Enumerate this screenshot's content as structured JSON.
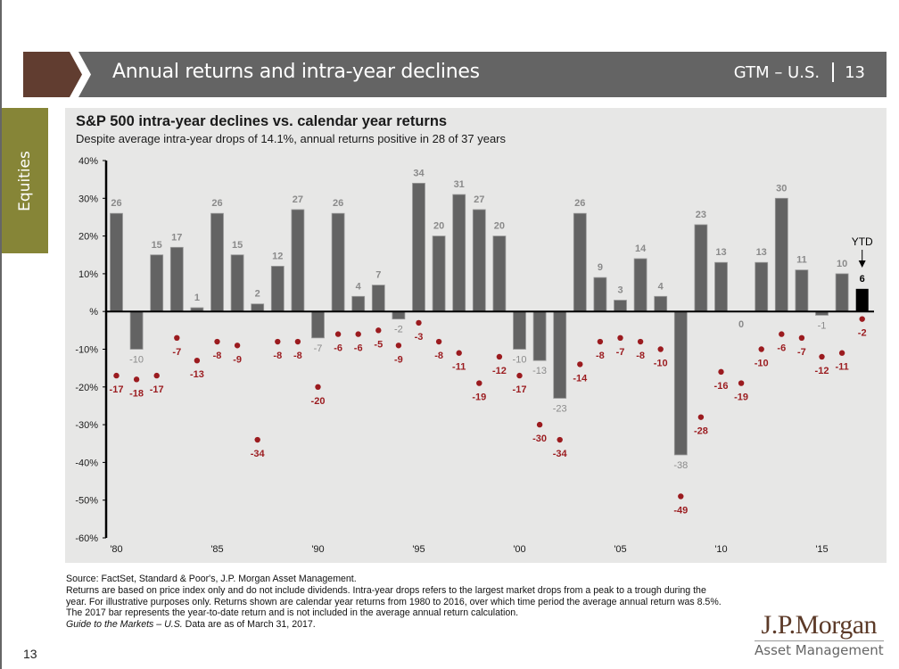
{
  "header": {
    "title": "Annual returns and intra-year declines",
    "guide": "GTM – U.S.",
    "page": "13",
    "chevron_color": "#613d30",
    "bar_color": "#646464"
  },
  "side_tab": {
    "label": "Equities",
    "color": "#868537"
  },
  "chart_data": {
    "type": "bar",
    "title": "S&P 500 intra-year declines vs. calendar year returns",
    "subtitle": "Despite average intra-year drops of 14.1%, annual returns positive in 28 of 37 years",
    "xlabel": "",
    "ylabel": "",
    "ylim": [
      -60,
      40
    ],
    "yticks": [
      40,
      30,
      20,
      10,
      0,
      -10,
      -20,
      -30,
      -40,
      -50,
      -60
    ],
    "ytick_labels": [
      "40%",
      "30%",
      "20%",
      "10%",
      "%",
      "-10%",
      "-20%",
      "-30%",
      "-40%",
      "-50%",
      "-60%"
    ],
    "x": [
      1980,
      1981,
      1982,
      1983,
      1984,
      1985,
      1986,
      1987,
      1988,
      1989,
      1990,
      1991,
      1992,
      1993,
      1994,
      1995,
      1996,
      1997,
      1998,
      1999,
      2000,
      2001,
      2002,
      2003,
      2004,
      2005,
      2006,
      2007,
      2008,
      2009,
      2010,
      2011,
      2012,
      2013,
      2014,
      2015,
      2016,
      2017
    ],
    "xtick_labels": [
      {
        "year": 1980,
        "label": "'80"
      },
      {
        "year": 1985,
        "label": "'85"
      },
      {
        "year": 1990,
        "label": "'90"
      },
      {
        "year": 1995,
        "label": "'95"
      },
      {
        "year": 2000,
        "label": "'00"
      },
      {
        "year": 2005,
        "label": "'05"
      },
      {
        "year": 2010,
        "label": "'10"
      },
      {
        "year": 2015,
        "label": "'15"
      }
    ],
    "series": [
      {
        "name": "Calendar year return",
        "mark": "bar",
        "color": "#636363",
        "values": [
          26,
          -10,
          15,
          17,
          1,
          26,
          15,
          2,
          12,
          27,
          -7,
          26,
          4,
          7,
          -2,
          34,
          20,
          31,
          27,
          20,
          -10,
          -13,
          -23,
          26,
          9,
          3,
          14,
          4,
          -38,
          23,
          13,
          0,
          13,
          30,
          11,
          -1,
          10,
          6
        ]
      },
      {
        "name": "Intra-year decline",
        "mark": "point",
        "color": "#9b1b1f",
        "values": [
          -17,
          -18,
          -17,
          -7,
          -13,
          -8,
          -9,
          -34,
          -8,
          -8,
          -20,
          -6,
          -6,
          -5,
          -9,
          -3,
          -8,
          -11,
          -19,
          -12,
          -17,
          -30,
          -34,
          -14,
          -8,
          -7,
          -8,
          -10,
          -49,
          -28,
          -16,
          -19,
          -10,
          -6,
          -7,
          -12,
          -11,
          -2
        ]
      }
    ],
    "ytd": {
      "year": 2017,
      "label": "YTD",
      "bar_color": "#000000"
    },
    "grid": false,
    "legend": "none"
  },
  "footnote": {
    "source": "Source: FactSet, Standard & Poor's, J.P. Morgan Asset Management.",
    "body": "Returns are based on price index only and do not include dividends. Intra-year drops refers to the largest market drops from a peak to a trough during the year. For illustrative purposes only. Returns shown are calendar year returns from 1980 to 2016, over which time period the average annual return was 8.5%. The 2017 bar represents the year-to-date return and is not included in the average annual return calculation.",
    "guide_title": "Guide to the Markets – U.S.",
    "date_note": " Data are as of March 31, 2017."
  },
  "page_number": "13",
  "logo": {
    "brand": "J.P.Morgan",
    "sub": "Asset Management"
  }
}
